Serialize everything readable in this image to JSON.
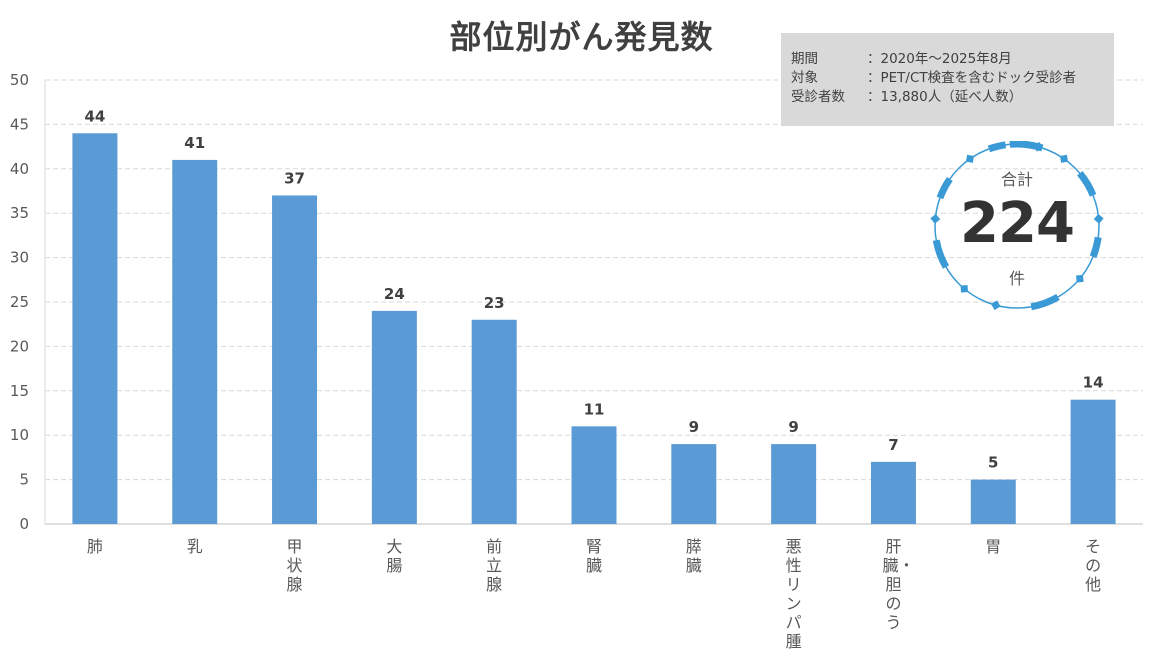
{
  "chart_data": {
    "type": "bar",
    "title": "部位別がん発見数",
    "categories": [
      "肺",
      "乳",
      "甲状腺",
      "大腸",
      "前立腺",
      "腎臓",
      "膵臓",
      "悪性リンパ腫",
      "肝臓・胆のう",
      "胃",
      "その他"
    ],
    "values": [
      44,
      41,
      37,
      24,
      23,
      11,
      9,
      9,
      7,
      5,
      14
    ],
    "ylim": [
      0,
      50
    ],
    "yticks": [
      0,
      5,
      10,
      15,
      20,
      25,
      30,
      35,
      40,
      45,
      50
    ],
    "xlabel": "",
    "ylabel": "",
    "grid": true,
    "bar_color": "#5b9bd5",
    "data_labels": true
  },
  "info_box": {
    "rows": [
      {
        "label": "期間",
        "value": "：2020年～2025年8月"
      },
      {
        "label": "対象",
        "value": "：PET/CT検査を含むドック受診者"
      },
      {
        "label": "受診者数",
        "value": "：13,880人（延べ人数）"
      }
    ]
  },
  "total": {
    "label": "合計",
    "value": "224",
    "unit": "件",
    "ring_color": "#3a9ad6"
  }
}
